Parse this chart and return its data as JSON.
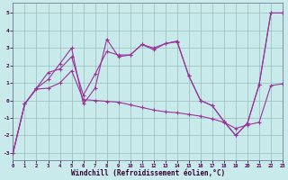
{
  "background_color": "#c8eaeb",
  "line_color": "#993399",
  "grid_color": "#99bbbc",
  "xlabel": "Windchill (Refroidissement éolien,°C)",
  "xlim": [
    0,
    23
  ],
  "ylim": [
    -3.4,
    5.6
  ],
  "xticks": [
    0,
    1,
    2,
    3,
    4,
    5,
    6,
    7,
    8,
    9,
    10,
    11,
    12,
    13,
    14,
    15,
    16,
    17,
    18,
    19,
    20,
    21,
    22,
    23
  ],
  "yticks": [
    -3,
    -2,
    -1,
    0,
    1,
    2,
    3,
    4,
    5
  ],
  "line1_x": [
    0,
    1,
    2,
    3,
    4,
    5,
    6,
    7,
    8,
    9,
    10,
    11,
    12,
    13,
    14,
    15,
    16,
    17,
    18,
    19,
    20,
    21,
    22,
    23
  ],
  "line1_y": [
    -3.0,
    -0.2,
    0.7,
    1.2,
    2.1,
    3.0,
    -0.2,
    0.7,
    3.5,
    2.5,
    2.6,
    3.2,
    3.0,
    3.25,
    3.4,
    1.4,
    0.0,
    -0.3,
    -1.2,
    -2.0,
    -1.3,
    0.9,
    5.0,
    5.0
  ],
  "line2_x": [
    0,
    1,
    2,
    3,
    4,
    5,
    6,
    7,
    8,
    9,
    10,
    11,
    12,
    13,
    14,
    15,
    16,
    17,
    18,
    19,
    20,
    21,
    22,
    23
  ],
  "line2_y": [
    -3.0,
    -0.2,
    0.7,
    1.6,
    1.8,
    2.5,
    0.3,
    1.5,
    2.8,
    2.6,
    2.6,
    3.2,
    2.9,
    3.25,
    3.35,
    1.4,
    0.0,
    -0.3,
    -1.2,
    -2.0,
    -1.3,
    0.9,
    5.0,
    5.0
  ],
  "line3_x": [
    0,
    1,
    2,
    3,
    4,
    5,
    6,
    7,
    8,
    9,
    10,
    11,
    12,
    13,
    14,
    15,
    16,
    17,
    18,
    19,
    20,
    21,
    22,
    23
  ],
  "line3_y": [
    -3.0,
    -0.2,
    0.65,
    0.7,
    1.0,
    1.7,
    0.05,
    0.0,
    -0.05,
    -0.1,
    -0.25,
    -0.4,
    -0.55,
    -0.65,
    -0.7,
    -0.8,
    -0.9,
    -1.05,
    -1.25,
    -1.6,
    -1.4,
    -1.25,
    0.85,
    0.95
  ]
}
